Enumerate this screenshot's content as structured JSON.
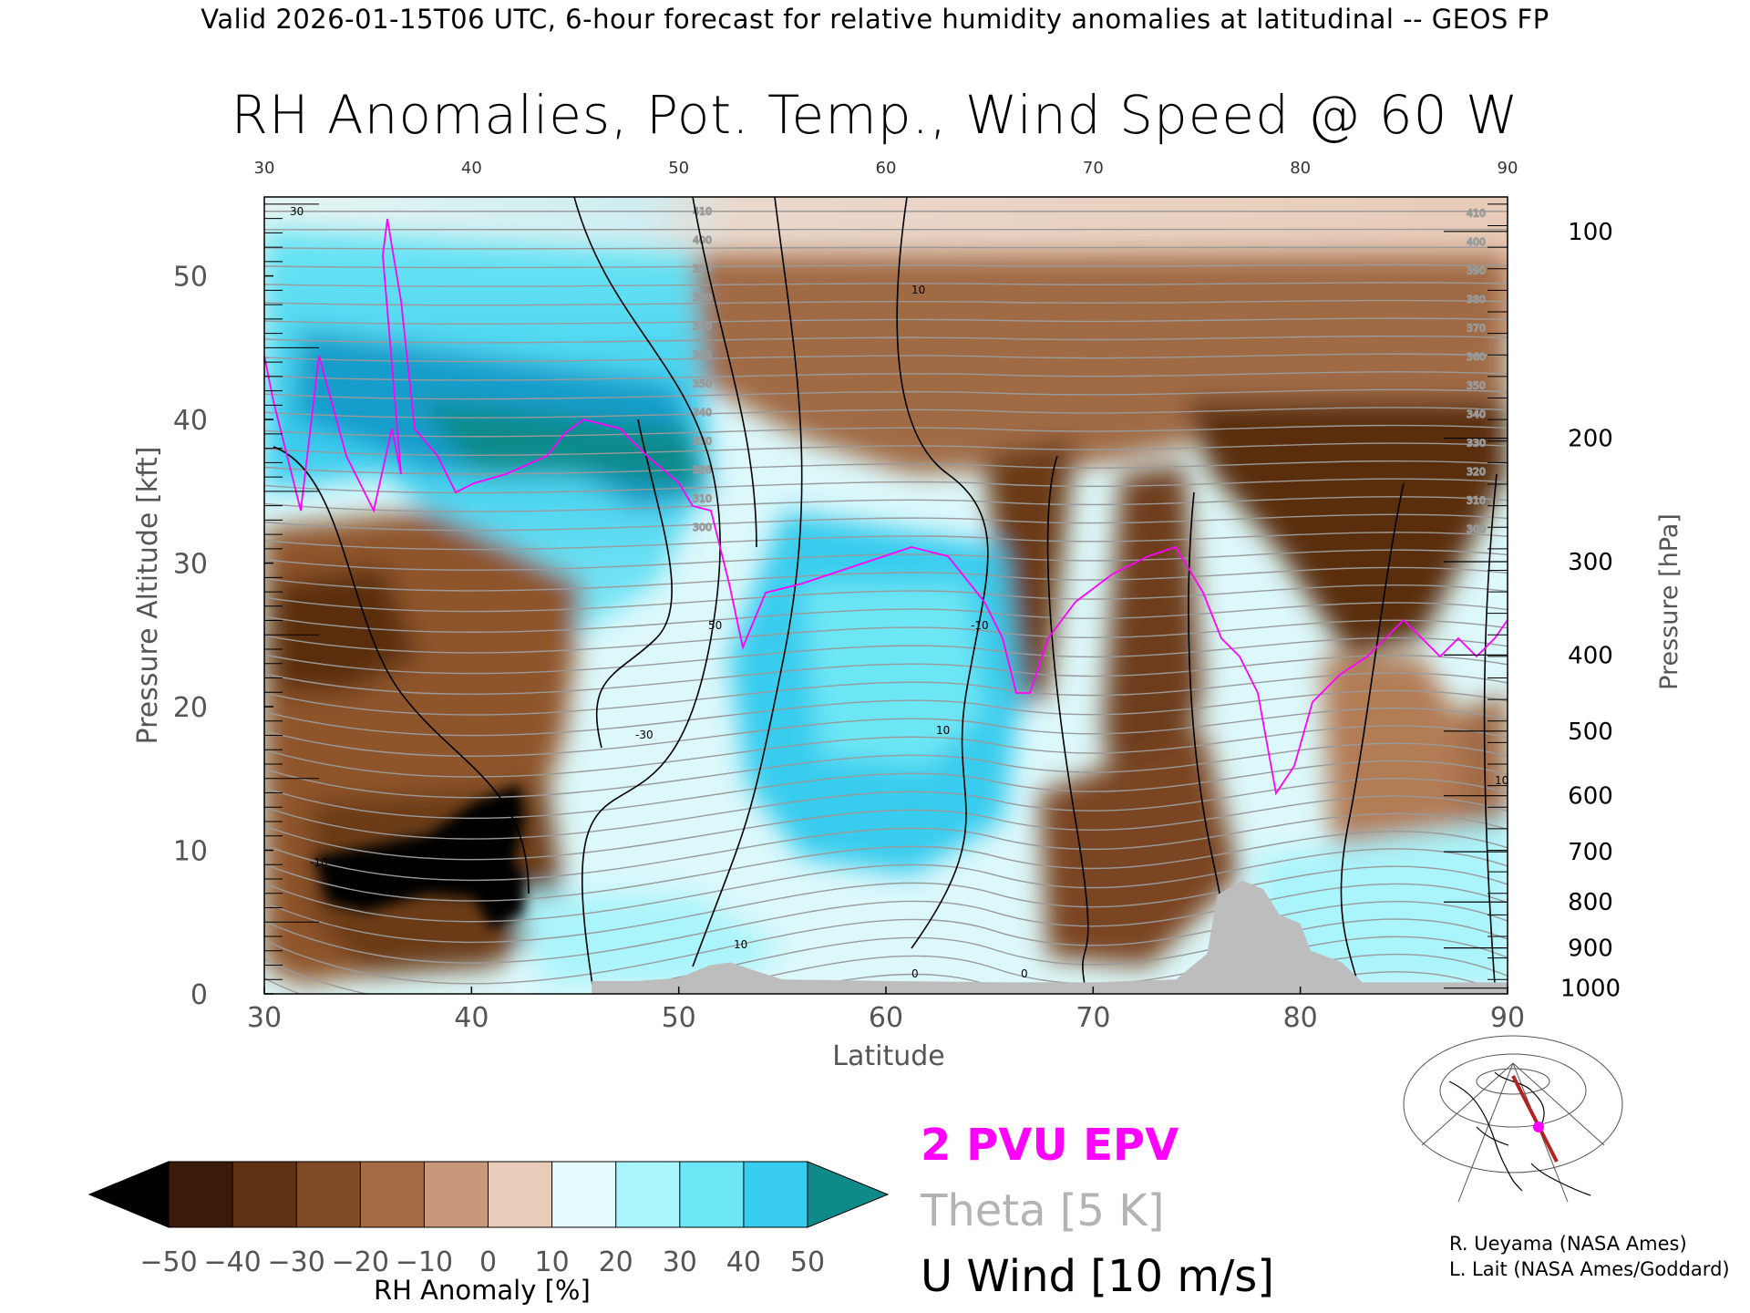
{
  "header": "Valid 2026-01-15T06 UTC, 6-hour forecast for relative humidity anomalies at latitudinal -- GEOS FP",
  "chart_data": {
    "type": "heatmap",
    "title": "RH Anomalies, Pot. Temp., Wind Speed @ 60 W",
    "xlabel": "Latitude",
    "ylabel": "Pressure Altitude [kft]",
    "y2label": "Pressure [hPa]",
    "x_ticks": [
      "30",
      "40",
      "50",
      "60",
      "70",
      "80",
      "90"
    ],
    "top_ticks": [
      "30",
      "40",
      "50",
      "60",
      "70",
      "80",
      "90"
    ],
    "y_ticks": [
      "0",
      "10",
      "20",
      "30",
      "40",
      "50"
    ],
    "pressure_ticks": [
      {
        "label": "100",
        "kft": 53.1
      },
      {
        "label": "200",
        "kft": 38.7
      },
      {
        "label": "300",
        "kft": 30.1
      },
      {
        "label": "400",
        "kft": 23.6
      },
      {
        "label": "500",
        "kft": 18.3
      },
      {
        "label": "600",
        "kft": 13.8
      },
      {
        "label": "700",
        "kft": 9.9
      },
      {
        "label": "800",
        "kft": 6.4
      },
      {
        "label": "900",
        "kft": 3.2
      },
      {
        "label": "1000",
        "kft": 0.4
      }
    ],
    "xlim": [
      30,
      90
    ],
    "ylim": [
      0,
      55.5
    ],
    "theta_labels": [
      "410",
      "400",
      "390",
      "380",
      "370",
      "360",
      "350",
      "340",
      "330",
      "320",
      "310",
      "300"
    ],
    "wind_labels": [
      "30",
      "10",
      "50",
      "-30",
      "10",
      "10",
      "-10",
      "10",
      "0",
      "0",
      "-10"
    ],
    "colorbar": {
      "label": "RH Anomaly [%]",
      "ticks": [
        "−50",
        "−40",
        "−30",
        "−20",
        "−10",
        "0",
        "10",
        "20",
        "30",
        "40",
        "50"
      ],
      "colors": [
        "#000000",
        "#3a1a08",
        "#5e3213",
        "#7f4a25",
        "#a46c45",
        "#c8987a",
        "#e8cbb8",
        "#e6fbff",
        "#aaf4fb",
        "#6de6f5",
        "#38ccee",
        "#159dcb",
        "#0e8a8a"
      ]
    },
    "topo_kft": [
      [
        45.8,
        0.9
      ],
      [
        48,
        0.9
      ],
      [
        50,
        1.1
      ],
      [
        51.5,
        2
      ],
      [
        52.5,
        2.2
      ],
      [
        53.5,
        1.7
      ],
      [
        55,
        1.0
      ],
      [
        60,
        0.9
      ],
      [
        66,
        0.8
      ],
      [
        70,
        0.8
      ],
      [
        74,
        1.0
      ],
      [
        75.5,
        2.8
      ],
      [
        76,
        6.9
      ],
      [
        77.2,
        7.9
      ],
      [
        78.2,
        7.3
      ],
      [
        79,
        5.5
      ],
      [
        80,
        4.9
      ],
      [
        80.5,
        3.0
      ],
      [
        82,
        2.2
      ],
      [
        83,
        0.8
      ],
      [
        90,
        0.8
      ]
    ],
    "legend": [
      "2 PVU EPV",
      "Theta [5 K]",
      "U Wind [10 m/s]"
    ]
  },
  "credits": [
    "R. Ueyama (NASA Ames)",
    "L. Lait (NASA Ames/Goddard)"
  ]
}
